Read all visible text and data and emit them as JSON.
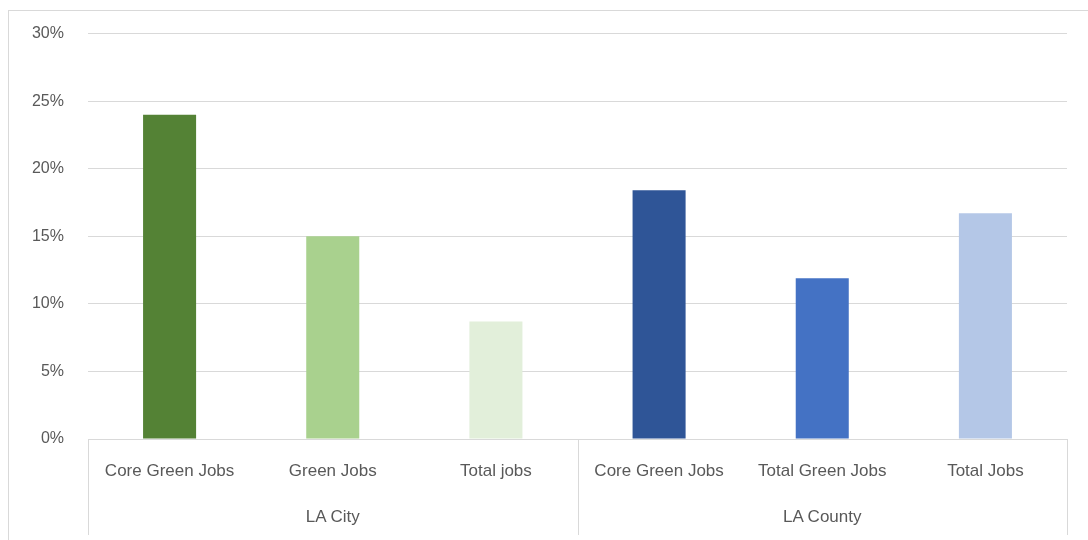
{
  "chart_data": {
    "type": "bar",
    "categories": [
      "Core Green Jobs",
      "Green Jobs",
      "Total jobs",
      "Core Green Jobs",
      "Total Green Jobs",
      "Total Jobs"
    ],
    "values": [
      24,
      15,
      8.7,
      18.4,
      11.9,
      16.7
    ],
    "colors": [
      "#548235",
      "#a9d18e",
      "#e2efda",
      "#2f5597",
      "#4472c4",
      "#b4c7e7"
    ],
    "ylim": [
      0,
      30
    ],
    "yticks": [
      {
        "value": 0,
        "label": "0%"
      },
      {
        "value": 5,
        "label": "5%"
      },
      {
        "value": 10,
        "label": "10%"
      },
      {
        "value": 15,
        "label": "15%"
      },
      {
        "value": 20,
        "label": "20%"
      },
      {
        "value": 25,
        "label": "25%"
      },
      {
        "value": 30,
        "label": "30%"
      }
    ],
    "grid": "y",
    "legend": false,
    "annotations": [
      "LA City",
      "LA County"
    ]
  }
}
